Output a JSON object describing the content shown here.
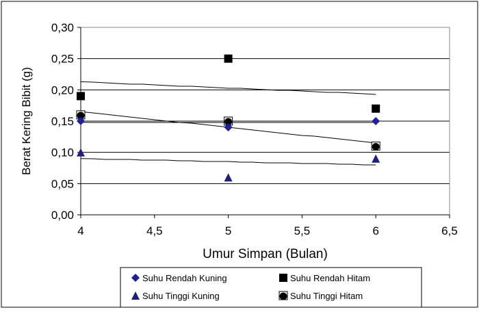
{
  "chart_data": {
    "type": "scatter",
    "title": "",
    "xlabel": "Umur Simpan (Bulan)",
    "ylabel": "Berat Kering Bibit (g)",
    "xlim": [
      4,
      6.5
    ],
    "ylim": [
      0,
      0.3
    ],
    "x_ticks": [
      "4",
      "4,5",
      "5",
      "5,5",
      "6",
      "6,5"
    ],
    "x_tick_values": [
      4,
      4.5,
      5,
      5.5,
      6,
      6.5
    ],
    "y_ticks": [
      "0,00",
      "0,05",
      "0,10",
      "0,15",
      "0,20",
      "0,25",
      "0,30"
    ],
    "y_tick_values": [
      0,
      0.05,
      0.1,
      0.15,
      0.2,
      0.25,
      0.3
    ],
    "grid": "horizontal",
    "legend_position": "bottom",
    "series": [
      {
        "name": "Suhu Rendah Kuning",
        "marker": "diamond",
        "color": "#1f1f9f",
        "x": [
          4,
          5,
          6
        ],
        "values": [
          0.15,
          0.14,
          0.15
        ],
        "trendline": [
          0.148,
          0.148
        ]
      },
      {
        "name": "Suhu Rendah Hitam",
        "marker": "square",
        "color": "#000000",
        "x": [
          4,
          5,
          6
        ],
        "values": [
          0.19,
          0.25,
          0.17
        ],
        "trendline": [
          0.213,
          0.193
        ]
      },
      {
        "name": "Suhu Tinggi Kuning",
        "marker": "triangle",
        "color": "#1f1f7f",
        "x": [
          4,
          5,
          6
        ],
        "values": [
          0.1,
          0.06,
          0.09
        ],
        "trendline": [
          0.09,
          0.08
        ]
      },
      {
        "name": "Suhu Tinggi Hitam",
        "marker": "circle",
        "color": "#000000",
        "x": [
          4,
          5,
          6
        ],
        "values": [
          0.16,
          0.15,
          0.11
        ],
        "trendline": [
          0.165,
          0.115
        ]
      }
    ]
  }
}
